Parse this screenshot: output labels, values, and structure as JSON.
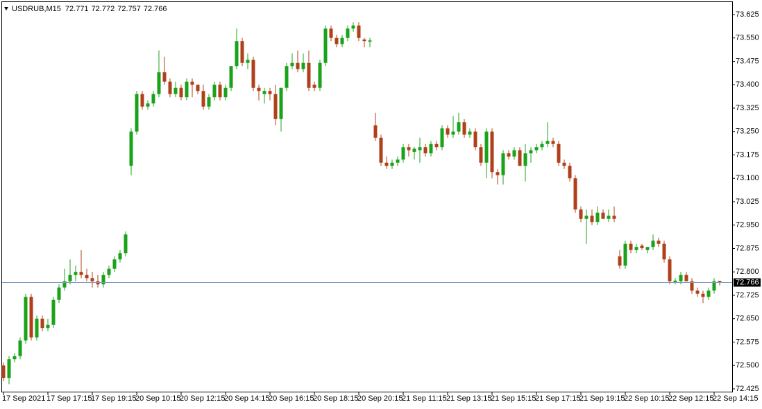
{
  "chart_data": {
    "type": "candlestick",
    "symbol": "USDRUB,M15",
    "header_values": [
      72.771,
      72.772,
      72.757,
      72.766
    ],
    "current_price": 72.766,
    "up_color": "#1aa31a",
    "down_color": "#b0401a",
    "price_line_color": "#7a9cc0",
    "ylim": [
      72.416,
      73.665
    ],
    "yticks": [
      72.425,
      {
        "value": 72.5,
        "label": "72.500"
      },
      72.575,
      {
        "value": 72.65,
        "label": "72.650"
      },
      72.725,
      {
        "value": 72.8,
        "label": "72.800"
      },
      72.875,
      {
        "value": 72.95,
        "label": "72.950"
      },
      73.025,
      {
        "value": 73.1,
        "label": "73.100"
      },
      73.175,
      {
        "value": 73.25,
        "label": "73.250"
      },
      73.325,
      {
        "value": 73.4,
        "label": "73.400"
      },
      73.475,
      {
        "value": 73.55,
        "label": "73.550"
      },
      73.625
    ],
    "categories": [
      "17 Sep 2021",
      null,
      null,
      null,
      null,
      null,
      null,
      null,
      "17 Sep 17:15",
      null,
      null,
      null,
      null,
      null,
      null,
      null,
      "17 Sep 19:15",
      null,
      null,
      null,
      null,
      null,
      null,
      null,
      "20 Sep 10:15",
      null,
      null,
      null,
      null,
      null,
      null,
      null,
      "20 Sep 12:15",
      null,
      null,
      null,
      null,
      null,
      null,
      null,
      "20 Sep 14:15",
      null,
      null,
      null,
      null,
      null,
      null,
      null,
      "20 Sep 16:15",
      null,
      null,
      null,
      null,
      null,
      null,
      null,
      "20 Sep 18:15",
      null,
      null,
      null,
      null,
      null,
      null,
      null,
      "20 Sep 20:15",
      null,
      null,
      null,
      null,
      null,
      null,
      null,
      "21 Sep 11:15",
      null,
      null,
      null,
      null,
      null,
      null,
      null,
      "21 Sep 13:15",
      null,
      null,
      null,
      null,
      null,
      null,
      null,
      "21 Sep 15:15",
      null,
      null,
      null,
      null,
      null,
      null,
      null,
      "21 Sep 17:15",
      null,
      null,
      null,
      null,
      null,
      null,
      null,
      "21 Sep 19:15",
      null,
      null,
      null,
      null,
      null,
      null,
      null,
      "22 Sep 10:15",
      null,
      null,
      null,
      null,
      null,
      null,
      null,
      "22 Sep 12:15",
      null,
      null,
      null,
      null,
      null,
      null,
      null,
      "22 Sep 14:15",
      null
    ],
    "open": [
      72.5,
      72.46,
      72.52,
      72.53,
      72.58,
      72.72,
      72.59,
      72.65,
      72.62,
      72.63,
      72.71,
      72.75,
      72.77,
      72.79,
      72.8,
      72.79,
      72.78,
      72.77,
      72.76,
      72.79,
      72.81,
      72.84,
      72.86,
      73.14,
      73.25,
      73.37,
      73.33,
      73.34,
      73.37,
      73.44,
      73.41,
      73.37,
      73.39,
      73.36,
      73.41,
      73.4,
      73.38,
      73.33,
      73.36,
      73.4,
      73.36,
      73.39,
      73.46,
      73.54,
      73.47,
      73.48,
      73.39,
      73.37,
      73.38,
      73.37,
      73.29,
      73.39,
      73.46,
      73.47,
      73.45,
      73.47,
      73.4,
      73.39,
      73.47,
      73.58,
      73.55,
      73.53,
      73.55,
      73.58,
      73.59,
      73.545,
      73.538,
      73.27,
      73.23,
      73.15,
      73.14,
      73.15,
      73.16,
      73.2,
      73.185,
      73.19,
      73.2,
      73.18,
      73.21,
      73.2,
      73.26,
      73.24,
      73.25,
      73.28,
      73.24,
      73.25,
      73.2,
      73.15,
      73.25,
      73.12,
      73.11,
      73.18,
      73.17,
      73.19,
      73.14,
      73.18,
      73.19,
      73.2,
      73.21,
      73.22,
      73.21,
      73.15,
      73.14,
      73.1,
      73.0,
      72.97,
      72.98,
      72.96,
      72.99,
      72.97,
      72.98,
      72.85,
      72.82,
      72.89,
      72.87,
      72.884,
      72.87,
      72.88,
      72.9,
      72.89,
      72.84,
      72.765,
      72.77,
      72.79,
      72.77,
      72.74,
      72.73,
      72.72,
      72.74,
      72.771
    ],
    "high": [
      72.51,
      72.53,
      72.54,
      72.59,
      72.73,
      72.73,
      72.66,
      72.66,
      72.65,
      72.72,
      72.76,
      72.81,
      72.84,
      72.82,
      72.87,
      72.81,
      72.8,
      72.79,
      72.8,
      72.82,
      72.85,
      72.87,
      72.93,
      73.26,
      73.38,
      73.38,
      73.35,
      73.38,
      73.51,
      73.49,
      73.42,
      73.41,
      73.4,
      73.42,
      73.42,
      73.4,
      73.4,
      73.37,
      73.41,
      73.41,
      73.4,
      73.46,
      73.58,
      73.55,
      73.5,
      73.49,
      73.4,
      73.39,
      73.39,
      73.4,
      73.39,
      73.47,
      73.5,
      73.51,
      73.5,
      73.51,
      73.41,
      73.48,
      73.59,
      73.59,
      73.56,
      73.56,
      73.59,
      73.6,
      73.6,
      73.55,
      73.55,
      73.31,
      73.24,
      73.17,
      73.16,
      73.17,
      73.21,
      73.21,
      73.2,
      73.23,
      73.21,
      73.22,
      73.22,
      73.27,
      73.27,
      73.3,
      73.31,
      73.29,
      73.26,
      73.26,
      73.21,
      73.26,
      73.26,
      73.13,
      73.19,
      73.19,
      73.2,
      73.2,
      73.21,
      73.2,
      73.21,
      73.22,
      73.28,
      73.23,
      73.22,
      73.16,
      73.15,
      73.11,
      73.01,
      73.0,
      73.0,
      73.01,
      73.0,
      73.0,
      73.01,
      72.87,
      72.9,
      72.9,
      72.89,
      72.89,
      72.88,
      72.92,
      72.91,
      72.9,
      72.85,
      72.78,
      72.8,
      72.8,
      72.78,
      72.75,
      72.74,
      72.75,
      72.78,
      72.772
    ],
    "low": [
      72.45,
      72.44,
      72.51,
      72.52,
      72.57,
      72.58,
      72.58,
      72.61,
      72.61,
      72.62,
      72.7,
      72.74,
      72.76,
      72.77,
      72.78,
      72.77,
      72.75,
      72.75,
      72.75,
      72.78,
      72.8,
      72.83,
      72.85,
      73.11,
      73.24,
      73.32,
      73.32,
      73.33,
      73.36,
      73.4,
      73.36,
      73.36,
      73.35,
      73.35,
      73.36,
      73.37,
      73.32,
      73.32,
      73.35,
      73.35,
      73.35,
      73.38,
      73.45,
      73.46,
      73.45,
      73.38,
      73.35,
      73.34,
      73.35,
      73.27,
      73.25,
      73.38,
      73.45,
      73.44,
      73.44,
      73.38,
      73.38,
      73.38,
      73.46,
      73.54,
      73.52,
      73.52,
      73.54,
      73.57,
      73.54,
      73.52,
      73.52,
      73.22,
      73.14,
      73.13,
      73.13,
      73.14,
      73.15,
      73.17,
      73.16,
      73.15,
      73.17,
      73.17,
      73.19,
      73.19,
      73.23,
      73.23,
      73.24,
      73.23,
      73.23,
      73.19,
      73.14,
      73.1,
      73.1,
      73.08,
      73.08,
      73.16,
      73.16,
      73.14,
      73.09,
      73.15,
      73.18,
      73.19,
      73.2,
      73.2,
      73.14,
      73.13,
      73.09,
      72.99,
      72.96,
      72.89,
      72.95,
      72.95,
      72.97,
      72.96,
      72.96,
      72.81,
      72.81,
      72.86,
      72.86,
      72.87,
      72.86,
      72.87,
      72.88,
      72.83,
      72.76,
      72.76,
      72.76,
      72.77,
      72.73,
      72.72,
      72.7,
      72.71,
      72.73,
      72.757
    ],
    "close": [
      72.46,
      72.52,
      72.53,
      72.58,
      72.72,
      72.59,
      72.65,
      72.62,
      72.63,
      72.71,
      72.75,
      72.77,
      72.79,
      72.8,
      72.79,
      72.78,
      72.77,
      72.76,
      72.79,
      72.81,
      72.84,
      72.86,
      72.92,
      73.25,
      73.37,
      73.33,
      73.34,
      73.37,
      73.44,
      73.41,
      73.37,
      73.39,
      73.36,
      73.41,
      73.4,
      73.38,
      73.33,
      73.36,
      73.4,
      73.36,
      73.39,
      73.46,
      73.54,
      73.47,
      73.48,
      73.39,
      73.38,
      73.38,
      73.37,
      73.29,
      73.39,
      73.46,
      73.47,
      73.45,
      73.47,
      73.39,
      73.39,
      73.47,
      73.58,
      73.55,
      73.53,
      73.55,
      73.58,
      73.59,
      73.55,
      73.54,
      73.542,
      73.23,
      73.15,
      73.14,
      73.15,
      73.16,
      73.2,
      73.19,
      73.195,
      73.2,
      73.18,
      73.21,
      73.2,
      73.26,
      73.24,
      73.25,
      73.28,
      73.24,
      73.25,
      73.2,
      73.15,
      73.25,
      73.12,
      73.11,
      73.18,
      73.17,
      73.19,
      73.14,
      73.18,
      73.19,
      73.2,
      73.21,
      73.22,
      73.21,
      73.15,
      73.14,
      73.1,
      73.0,
      72.97,
      72.98,
      72.96,
      72.99,
      72.97,
      72.98,
      72.97,
      72.82,
      72.89,
      72.87,
      72.88,
      72.876,
      72.88,
      72.9,
      72.89,
      72.84,
      72.77,
      72.772,
      72.79,
      72.77,
      72.74,
      72.73,
      72.72,
      72.74,
      72.77,
      72.766
    ]
  }
}
